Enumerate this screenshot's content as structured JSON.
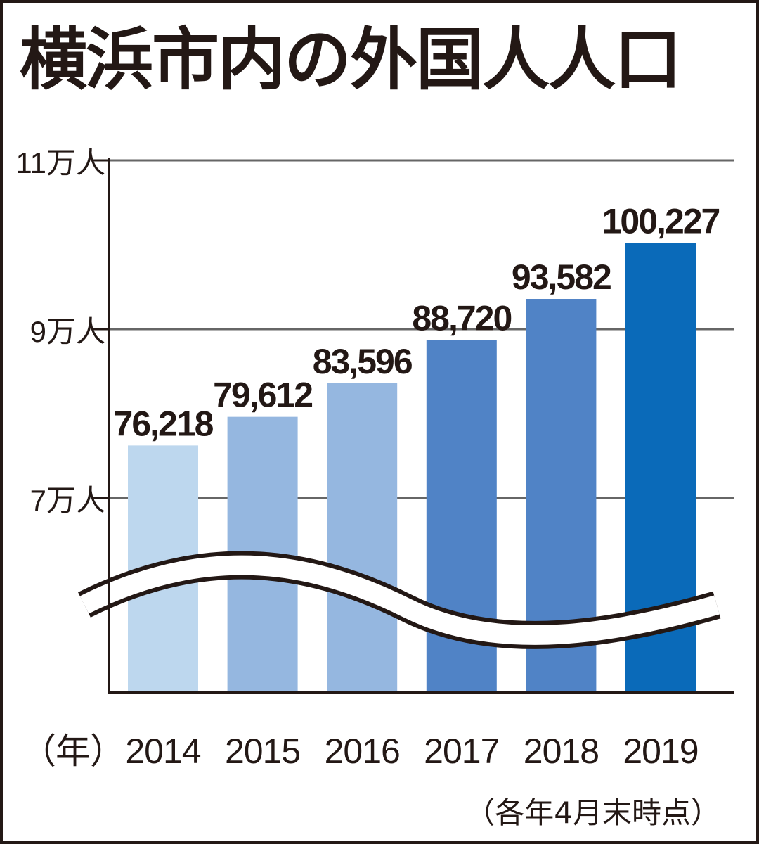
{
  "chart_data": {
    "type": "bar",
    "title": "横浜市内の外国人人口",
    "xlabel": "（年）",
    "note": "（各年4月末時点）",
    "categories": [
      "2014",
      "2015",
      "2016",
      "2017",
      "2018",
      "2019"
    ],
    "values": [
      76218,
      79612,
      83596,
      88720,
      93582,
      100227
    ],
    "value_labels": [
      "76,218",
      "79,612",
      "83,596",
      "88,720",
      "93,582",
      "100,227"
    ],
    "ylim": [
      70000,
      110000
    ],
    "axis_break": true,
    "yticks": [
      {
        "value": 70000,
        "label": "7万人"
      },
      {
        "value": 90000,
        "label": "9万人"
      },
      {
        "value": 110000,
        "label": "11万人"
      }
    ],
    "grid": true,
    "colors": [
      "#bdd7ee",
      "#95b7e0",
      "#95b7e0",
      "#5083c6",
      "#5083c6",
      "#0a6ab9"
    ],
    "axis_color": "#231815",
    "grid_color": "#666666"
  }
}
